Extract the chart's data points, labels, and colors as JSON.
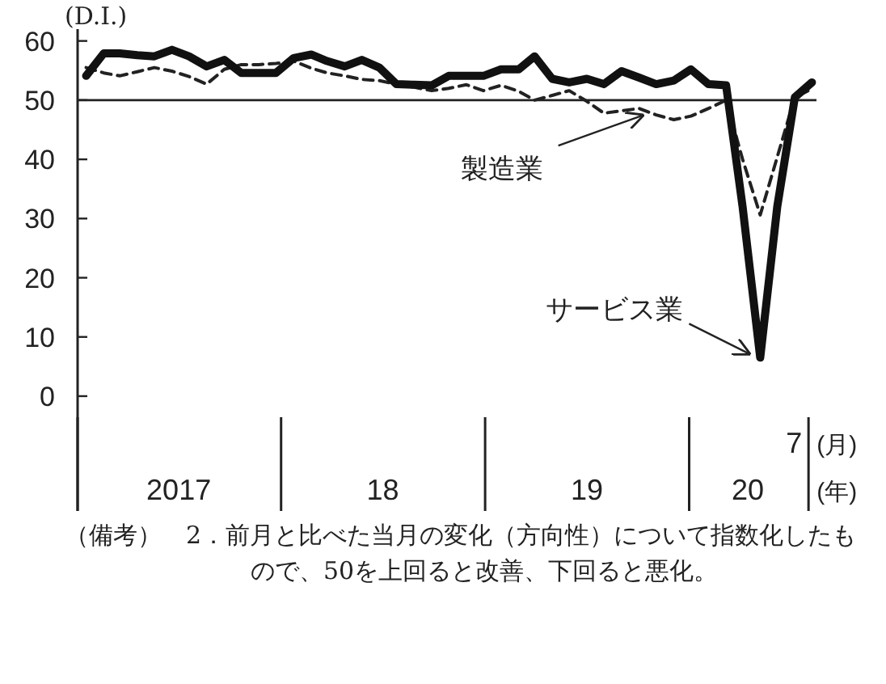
{
  "chart_data": {
    "type": "line",
    "ylabel": "(D.I.)",
    "xlabel": "(年)",
    "x": [
      "2017-01",
      "2017-02",
      "2017-03",
      "2017-04",
      "2017-05",
      "2017-06",
      "2017-07",
      "2017-08",
      "2017-09",
      "2017-10",
      "2017-11",
      "2017-12",
      "2018-01",
      "2018-02",
      "2018-03",
      "2018-04",
      "2018-05",
      "2018-06",
      "2018-07",
      "2018-08",
      "2018-09",
      "2018-10",
      "2018-11",
      "2018-12",
      "2019-01",
      "2019-02",
      "2019-03",
      "2019-04",
      "2019-05",
      "2019-06",
      "2019-07",
      "2019-08",
      "2019-09",
      "2019-10",
      "2019-11",
      "2019-12",
      "2020-01",
      "2020-02",
      "2020-03",
      "2020-04",
      "2020-05",
      "2020-06",
      "2020-07"
    ],
    "series": [
      {
        "color": "#111111",
        "line_style": "solid",
        "values": [
          54.1,
          57.9,
          57.9,
          57.6,
          57.4,
          58.5,
          57.4,
          55.7,
          56.8,
          54.6,
          54.6,
          54.6,
          57.1,
          57.7,
          56.6,
          55.7,
          56.8,
          55.5,
          52.7,
          52.6,
          52.5,
          54.1,
          54.1,
          54.1,
          55.2,
          55.2,
          57.4,
          53.6,
          53,
          53.6,
          52.7,
          54.9,
          53.8,
          52.7,
          53.3,
          55.2,
          52.7,
          52.5,
          32,
          6.5,
          32,
          50.5,
          53
        ]
      },
      {
        "color": "#222222",
        "line_style": "dashed",
        "values": [
          55.5,
          54.6,
          54.1,
          54.8,
          55.5,
          54.9,
          54,
          52.7,
          55.2,
          56,
          56,
          56.2,
          56.6,
          55.4,
          54.6,
          54.1,
          53.5,
          53.3,
          52.7,
          52.2,
          51.6,
          52,
          52.6,
          51.6,
          52.5,
          51.5,
          50,
          50.8,
          51.6,
          49.8,
          47.8,
          48.2,
          48.6,
          47.5,
          46.7,
          47.3,
          48.6,
          50,
          40,
          30.6,
          40.4,
          50.5,
          51.9
        ]
      }
    ],
    "ylim": [
      -19.4,
      62
    ],
    "yticks": [
      0,
      10,
      20,
      30,
      40,
      50,
      60
    ],
    "xlim": [
      "2016-12-17",
      "2020-07-09"
    ],
    "xticks": [
      {
        "value": "2016-12-17",
        "label": null
      },
      {
        "value": "2017-12-10",
        "label": null
      },
      {
        "value": "2018-12-04",
        "label": null
      },
      {
        "value": "2019-11-28",
        "label": null
      },
      {
        "value": "2020-06-25",
        "label": null
      },
      {
        "value": "2017-06-13",
        "label": "2017"
      },
      {
        "value": "2018-06-07",
        "label": "18"
      },
      {
        "value": "2019-06-01",
        "label": "19"
      },
      {
        "value": "2020-03-10",
        "label": "20"
      }
    ],
    "ref_lines": [
      {
        "axis": "y",
        "value": 50,
        "label": null,
        "color": "#222222"
      }
    ],
    "annotations": [
      {
        "text": "製造業",
        "x": "2019-09",
        "y": 48.6
      },
      {
        "text": "サービス業",
        "x": "2020-04",
        "y": 6.5
      },
      "7",
      "(月)",
      "（備考）　2．前月と比べた当月の変化（方向性）について指数化したもので、50を上回ると改善、下回ると悪化。"
    ],
    "grid": false
  }
}
